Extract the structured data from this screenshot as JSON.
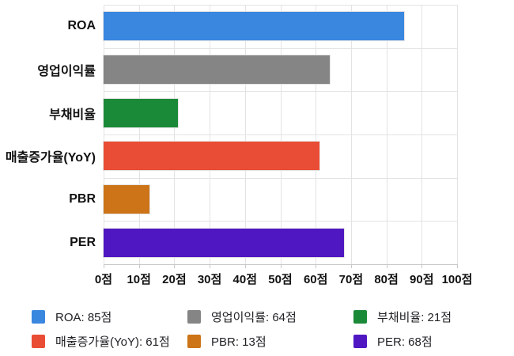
{
  "chart_data": {
    "type": "bar",
    "orientation": "horizontal",
    "title": "",
    "xlabel": "",
    "ylabel": "",
    "unit": "점",
    "categories": [
      "ROA",
      "영업이익률",
      "부채비율",
      "매출증가율(YoY)",
      "PBR",
      "PER"
    ],
    "values": [
      85,
      64,
      21,
      61,
      13,
      68
    ],
    "colors": [
      "#3a87e0",
      "#858585",
      "#1b8a38",
      "#ea4d35",
      "#cc7417",
      "#4e17c2"
    ],
    "xlim": [
      0,
      100
    ],
    "x_ticks": [
      "0점",
      "10점",
      "20점",
      "30점",
      "40점",
      "50점",
      "60점",
      "70점",
      "80점",
      "90점",
      "100점"
    ],
    "grid": true,
    "legend_position": "bottom",
    "legend_labels": [
      "ROA: 85점",
      "영업이익률: 64점",
      "부채비율: 21점",
      "매출증가율(YoY): 61점",
      "PBR: 13점",
      "PER: 68점"
    ]
  },
  "style": {
    "background": "#ffffff",
    "gridline_color": "#e3e3e3",
    "axis_line_color": "#c8c8c8",
    "label_color": "#111111",
    "legend_text_color": "#202124"
  }
}
